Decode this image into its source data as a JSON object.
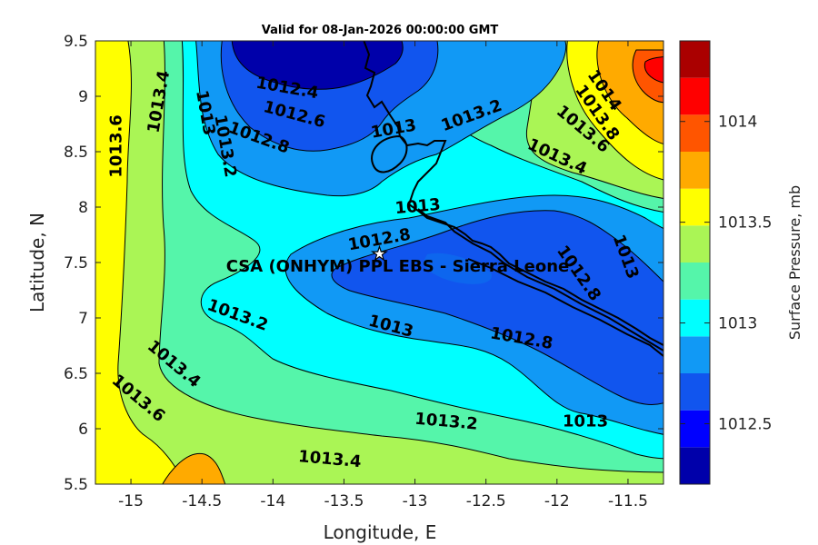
{
  "title": "Valid for 08-Jan-2026 00:00:00 GMT",
  "x_axis": {
    "label": "Longitude, E",
    "range": [
      -15.25,
      -11.25
    ],
    "ticks": [
      "-15",
      "-14.5",
      "-14",
      "-13.5",
      "-13",
      "-12.5",
      "-12",
      "-11.5"
    ]
  },
  "y_axis": {
    "label": "Latitude, N",
    "range": [
      5.5,
      9.5
    ],
    "ticks": [
      "5.5",
      "6",
      "6.5",
      "7",
      "7.5",
      "8",
      "8.5",
      "9",
      "9.5"
    ]
  },
  "colorbar": {
    "label": "Surface Pressure, mb",
    "range": [
      1012.2,
      1014.4
    ],
    "ticks": [
      "1012.5",
      "1013",
      "1013.5",
      "1014"
    ],
    "colors": [
      "#0000aa",
      "#0000ff",
      "#1155ee",
      "#1199f5",
      "#00ffff",
      "#55f5aa",
      "#aaf555",
      "#ffff00",
      "#ffaa00",
      "#ff5500",
      "#ff0000",
      "#aa0000"
    ]
  },
  "station": {
    "label": "CSA (ONHYM) PPL EBS - Sierra Leone",
    "marker": "star-icon",
    "lon": -13.25,
    "lat": 7.58
  },
  "contour_labels": [
    {
      "text": "1013.6",
      "lon": -15.1,
      "lat": 8.55,
      "rot": -90
    },
    {
      "text": "1013.4",
      "lon": -14.8,
      "lat": 8.95,
      "rot": -80
    },
    {
      "text": "1013",
      "lon": -14.48,
      "lat": 8.85,
      "rot": 80
    },
    {
      "text": "1013.2",
      "lon": -14.34,
      "lat": 8.55,
      "rot": 80
    },
    {
      "text": "1012.4",
      "lon": -13.9,
      "lat": 9.07,
      "rot": 10
    },
    {
      "text": "1012.6",
      "lon": -13.85,
      "lat": 8.83,
      "rot": 15
    },
    {
      "text": "1012.8",
      "lon": -14.1,
      "lat": 8.62,
      "rot": 20
    },
    {
      "text": "1013",
      "lon": -13.15,
      "lat": 8.7,
      "rot": -10
    },
    {
      "text": "1013.2",
      "lon": -12.6,
      "lat": 8.82,
      "rot": -20
    },
    {
      "text": "1013",
      "lon": -12.98,
      "lat": 8.0,
      "rot": -5
    },
    {
      "text": "1012.8",
      "lon": -13.25,
      "lat": 7.7,
      "rot": -10
    },
    {
      "text": "1014",
      "lon": -11.67,
      "lat": 9.05,
      "rot": 55
    },
    {
      "text": "1013.8",
      "lon": -11.72,
      "lat": 8.85,
      "rot": 55
    },
    {
      "text": "1013.6",
      "lon": -11.82,
      "lat": 8.7,
      "rot": 40
    },
    {
      "text": "1013.4",
      "lon": -12.0,
      "lat": 8.45,
      "rot": 25
    },
    {
      "text": "1013",
      "lon": -11.52,
      "lat": 7.55,
      "rot": 70
    },
    {
      "text": "1012.8",
      "lon": -11.85,
      "lat": 7.4,
      "rot": 55
    },
    {
      "text": "1013.2",
      "lon": -14.25,
      "lat": 7.02,
      "rot": 20
    },
    {
      "text": "1013",
      "lon": -13.17,
      "lat": 6.92,
      "rot": 15
    },
    {
      "text": "1012.8",
      "lon": -12.25,
      "lat": 6.81,
      "rot": 10
    },
    {
      "text": "1013.4",
      "lon": -14.7,
      "lat": 6.58,
      "rot": 40
    },
    {
      "text": "1013.6",
      "lon": -14.95,
      "lat": 6.27,
      "rot": 40
    },
    {
      "text": "1013.2",
      "lon": -12.78,
      "lat": 6.06,
      "rot": 5
    },
    {
      "text": "1013",
      "lon": -11.8,
      "lat": 6.06,
      "rot": 0
    },
    {
      "text": "1013.4",
      "lon": -13.6,
      "lat": 5.72,
      "rot": 5
    }
  ]
}
